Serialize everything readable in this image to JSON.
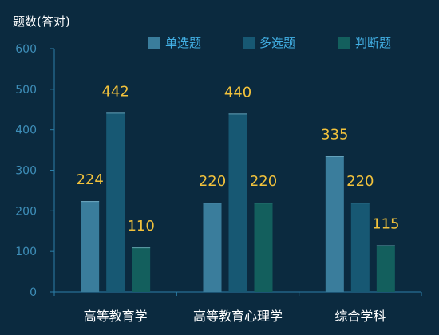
{
  "chart_data": {
    "type": "bar",
    "ylabel": "题数(答对)",
    "categories": [
      "高等教育学",
      "高等教育心理学",
      "综合学科"
    ],
    "series": [
      {
        "name": "单选题",
        "values": [
          224,
          220,
          335
        ]
      },
      {
        "name": "多选题",
        "values": [
          442,
          440,
          220
        ]
      },
      {
        "name": "判断题",
        "values": [
          110,
          220,
          115
        ]
      }
    ],
    "ylim": [
      0,
      600
    ],
    "yticks": [
      0,
      100,
      200,
      300,
      400,
      500,
      600
    ],
    "legend_position": "top",
    "grid": false
  },
  "colors": {
    "background": "#0b2a3f",
    "series": [
      "#3a7d9c",
      "#175873",
      "#135f5d"
    ],
    "data_label": "#f2c23c",
    "axis": "#2c7fa8",
    "tick_label": "#3e8eb8",
    "legend_text": "#43b1e6",
    "category_label": "#ffffff",
    "ylabel": "#ffffff"
  }
}
